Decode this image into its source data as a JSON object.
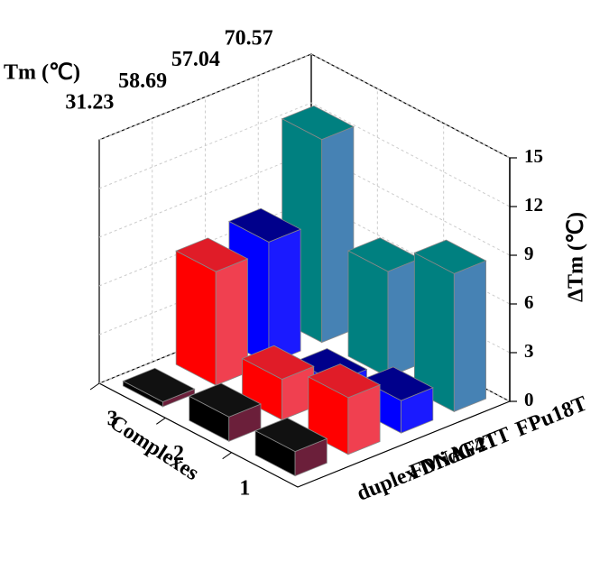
{
  "chart_data": {
    "type": "bar3d",
    "title": "Tm (℃)",
    "xlabel": "Complexes",
    "zlabel": "ΔTm (℃)",
    "categories": [
      "1",
      "2",
      "3"
    ],
    "series": [
      {
        "name": "duplex DNA",
        "tm": 31.23,
        "color": "#000000",
        "side_color": "#6b1f3a",
        "top_color": "#111111",
        "values": [
          1.5,
          1.5,
          0.3
        ]
      },
      {
        "name": "FMidG4T",
        "tm": 58.69,
        "color": "#ff0000",
        "side_color": "#f04050",
        "top_color": "#e01c28",
        "values": [
          3.5,
          2.5,
          7
        ]
      },
      {
        "name": "F21T",
        "tm": 57.04,
        "color": "#0000ff",
        "side_color": "#1a1aff",
        "top_color": "#00008b",
        "values": [
          2,
          1,
          7.5
        ]
      },
      {
        "name": "FPu18T",
        "tm": 70.57,
        "color": "#008080",
        "side_color": "#4682b4",
        "top_color": "#008080",
        "values": [
          8.5,
          6.5,
          12.5
        ]
      }
    ],
    "zlim": [
      0,
      15
    ],
    "zticks": [
      0,
      3,
      6,
      9,
      12,
      15
    ],
    "grid": true
  }
}
